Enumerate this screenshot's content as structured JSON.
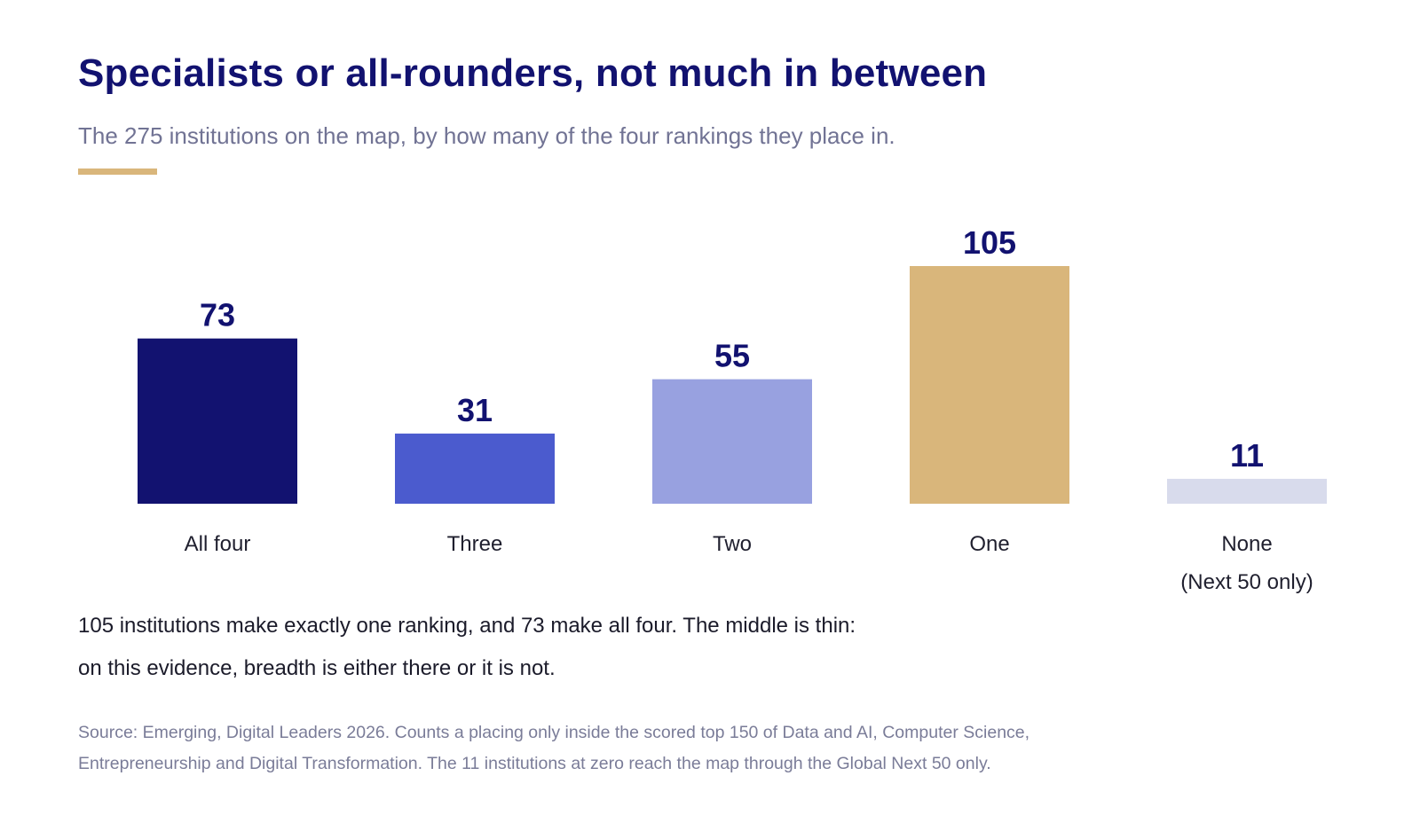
{
  "header": {
    "title": "Specialists or all-rounders, not much in between",
    "subtitle": "The 275 institutions on the map, by how many of the four rankings they place in."
  },
  "colors": {
    "accent_rule": "#d9b67b",
    "title": "#121270"
  },
  "chart_data": {
    "type": "bar",
    "title": "Specialists or all-rounders, not much in between",
    "subtitle": "The 275 institutions on the map, by how many of the four rankings they place in.",
    "xlabel": "",
    "ylabel": "",
    "grid": false,
    "categories": [
      {
        "label": "All four",
        "sublabel": ""
      },
      {
        "label": "Three",
        "sublabel": ""
      },
      {
        "label": "Two",
        "sublabel": ""
      },
      {
        "label": "One",
        "sublabel": ""
      },
      {
        "label": "None",
        "sublabel": "(Next 50 only)"
      }
    ],
    "values": [
      73,
      31,
      55,
      105,
      11
    ],
    "bar_colors": [
      "#121270",
      "#4b5bce",
      "#98a1e0",
      "#d9b67b",
      "#d8dbec"
    ],
    "ylim": [
      0,
      105
    ]
  },
  "notes": {
    "line1": "105 institutions make exactly one ranking, and 73 make all four. The middle is thin:",
    "line2": "on this evidence, breadth is either there or it is not."
  },
  "source": {
    "line1": "Source: Emerging, Digital Leaders 2026. Counts a placing only inside the scored top 150 of Data and AI, Computer Science,",
    "line2": "Entrepreneurship and Digital Transformation. The 11 institutions at zero reach the map through the Global Next 50 only."
  }
}
